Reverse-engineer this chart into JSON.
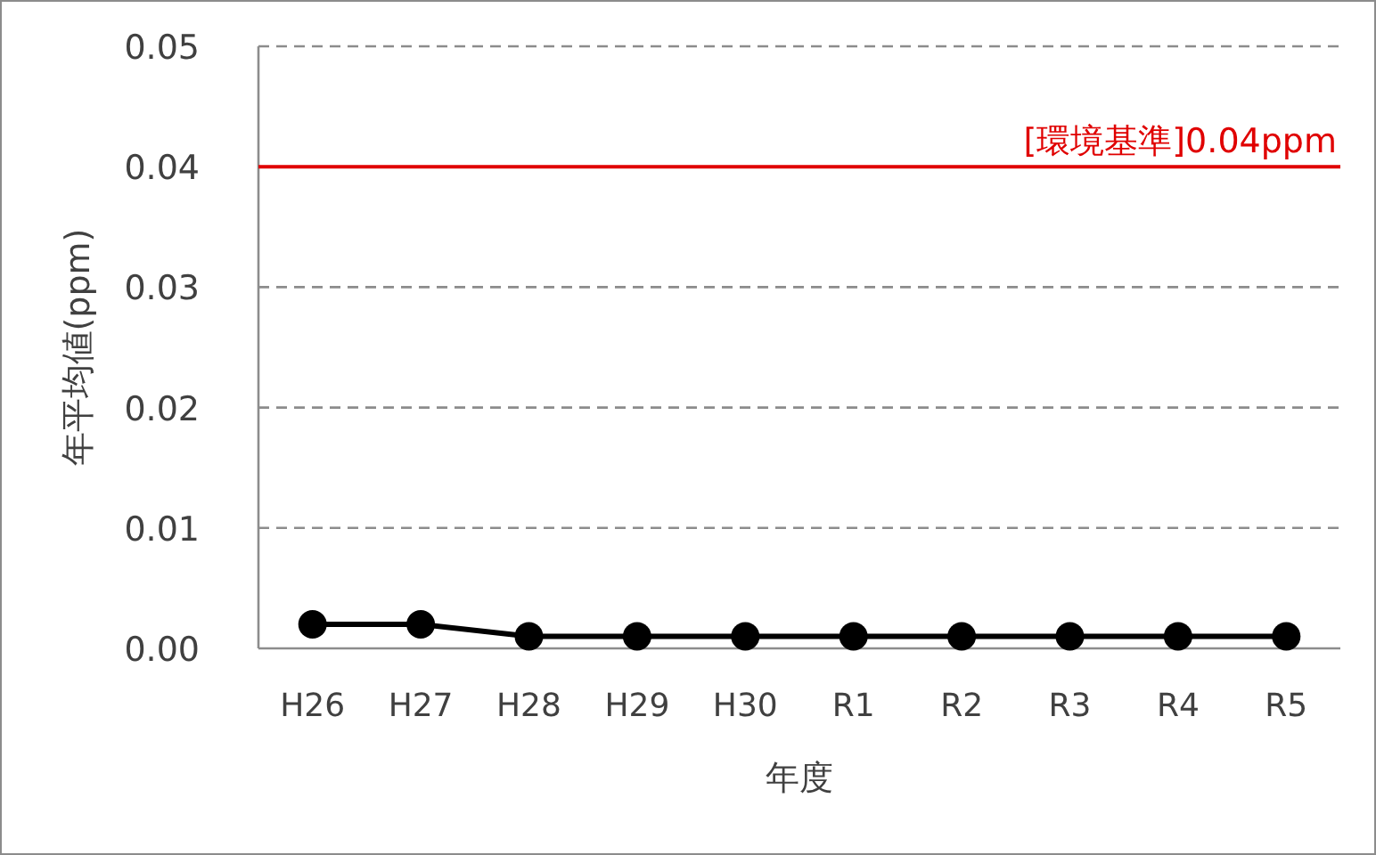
{
  "chart_data": {
    "type": "line",
    "xlabel": "年度",
    "ylabel": "年平均値(ppm)",
    "categories": [
      "H26",
      "H27",
      "H28",
      "H29",
      "H30",
      "R1",
      "R2",
      "R3",
      "R4",
      "R5"
    ],
    "series": [
      {
        "color": "#000000",
        "values": [
          0.002,
          0.002,
          0.001,
          0.001,
          0.001,
          0.001,
          0.001,
          0.001,
          0.001,
          0.001
        ]
      }
    ],
    "ylim": [
      0,
      0.05
    ],
    "yticks": [
      {
        "value": 0,
        "label": "0.00"
      },
      {
        "value": 0.01,
        "label": "0.01"
      },
      {
        "value": 0.02,
        "label": "0.02"
      },
      {
        "value": 0.03,
        "label": "0.03"
      },
      {
        "value": 0.04,
        "label": "0.04"
      },
      {
        "value": 0.05,
        "label": "0.05"
      }
    ],
    "grid": "y",
    "marker": "circle",
    "line_style": "solid",
    "ref_lines": [
      {
        "axis": "y",
        "value": 0.04,
        "label": "[環境基準]0.04ppm",
        "color": "#e00000"
      }
    ]
  }
}
